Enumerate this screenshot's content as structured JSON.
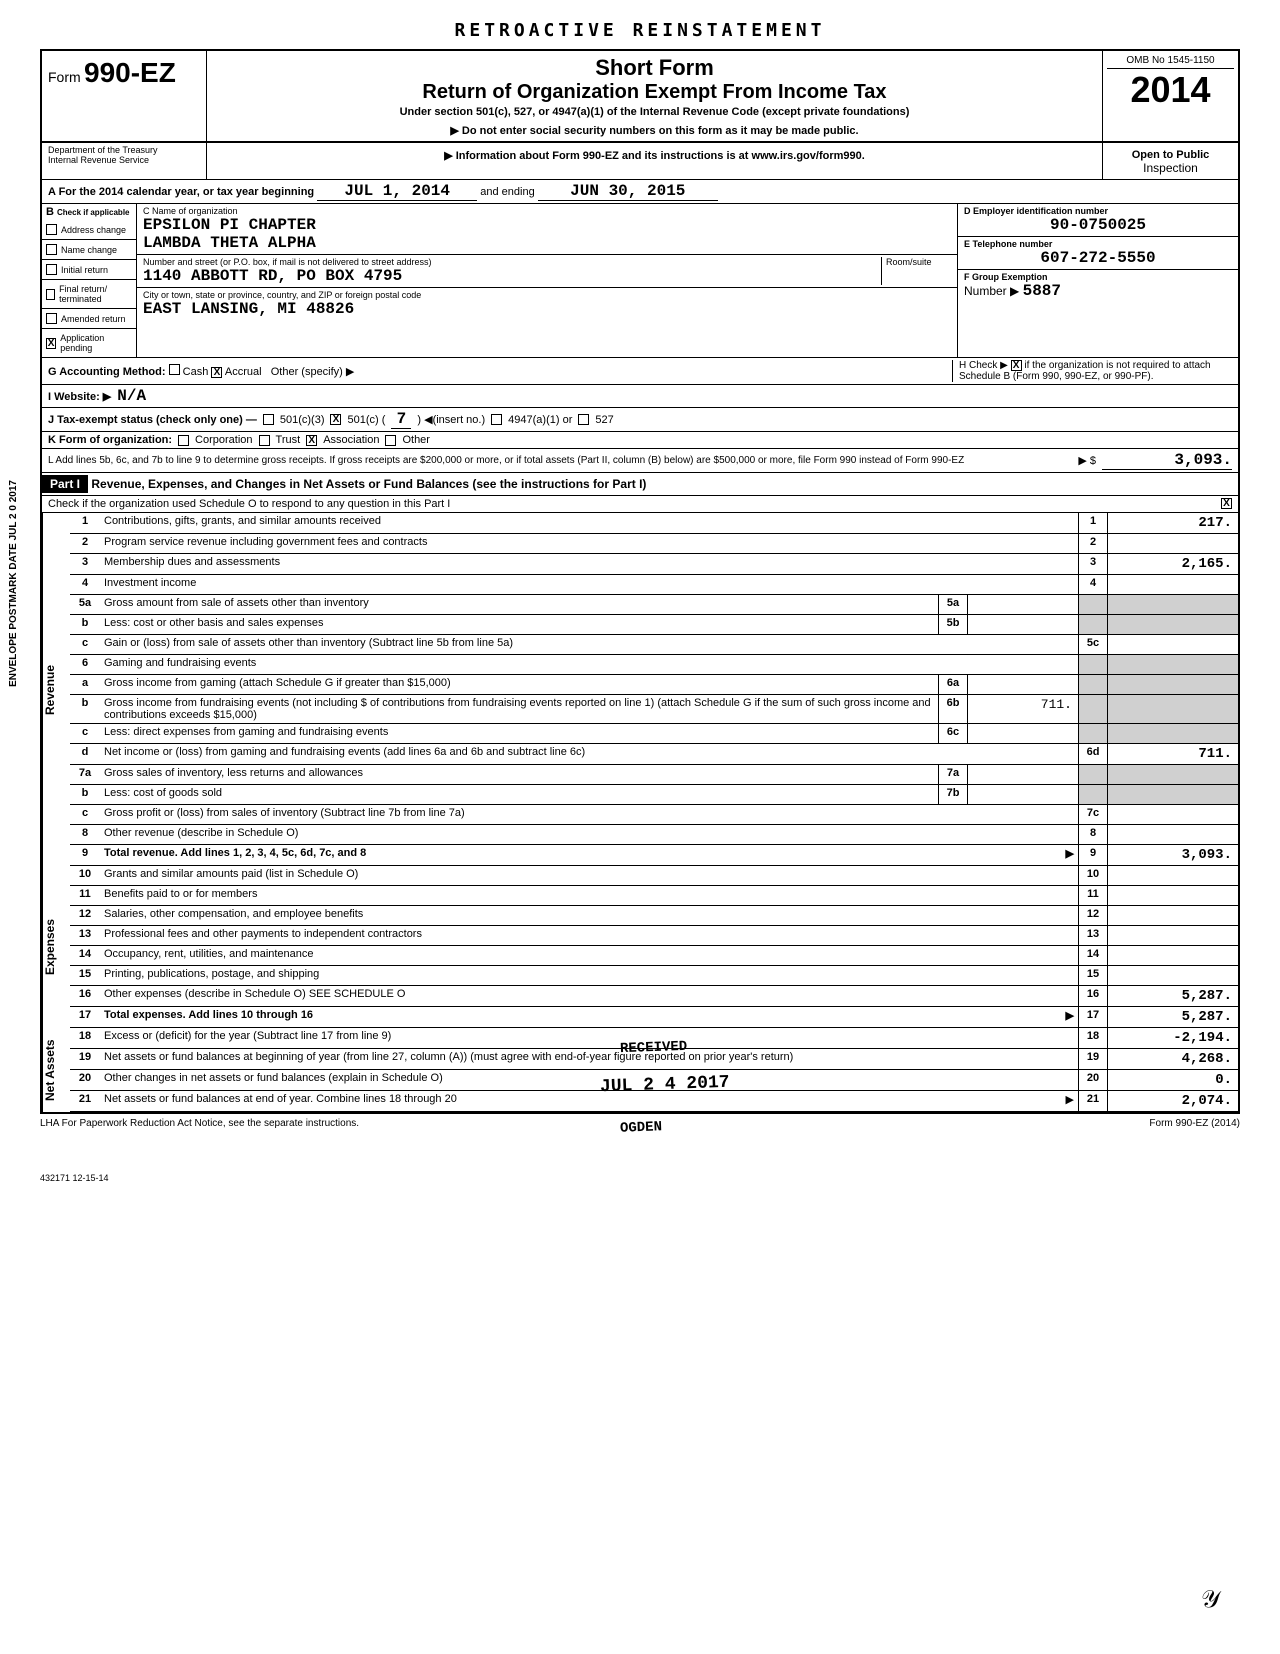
{
  "page_top": "RETROACTIVE REINSTATEMENT",
  "form": {
    "prefix": "Form",
    "number": "990-EZ",
    "short_form": "Short Form",
    "title": "Return of Organization Exempt From Income Tax",
    "subtitle": "Under section 501(c), 527, or 4947(a)(1) of the Internal Revenue Code (except private foundations)",
    "warning": "▶ Do not enter social security numbers on this form as it may be made public.",
    "info_line": "▶ Information about Form 990-EZ and its instructions is at www.irs.gov/form990.",
    "dept1": "Department of the Treasury",
    "dept2": "Internal Revenue Service",
    "omb": "OMB No 1545-1150",
    "year": "2014",
    "open_public": "Open to Public",
    "inspection": "Inspection"
  },
  "row_a": {
    "label": "A  For the 2014 calendar year, or tax year beginning",
    "begin": "JUL 1, 2014",
    "and_ending": "and ending",
    "end": "JUN 30, 2015"
  },
  "col_b": {
    "header": "B",
    "check_if": "Check if applicable",
    "items": [
      "Address change",
      "Name change",
      "Initial return",
      "Final return/ terminated",
      "Amended return",
      "Application pending"
    ],
    "checked_index": 5
  },
  "col_c": {
    "name_label": "C Name of organization",
    "name1": "EPSILON PI CHAPTER",
    "name2": "LAMBDA THETA ALPHA",
    "street_label": "Number and street (or P.O. box, if mail is not delivered to street address)",
    "room_label": "Room/suite",
    "street": "1140 ABBOTT RD, PO BOX 4795",
    "city_label": "City or town, state or province, country, and ZIP or foreign postal code",
    "city": "EAST LANSING, MI   48826"
  },
  "col_de": {
    "d_label": "D Employer identification number",
    "d_value": "90-0750025",
    "e_label": "E Telephone number",
    "e_value": "607-272-5550",
    "f_label": "F Group Exemption",
    "f_number_label": "Number ▶",
    "f_value": "5887"
  },
  "row_g": {
    "label": "G  Accounting Method:",
    "cash": "Cash",
    "accrual": "Accrual",
    "other": "Other (specify) ▶",
    "h_label": "H Check ▶",
    "h_text": "if the organization is not required to attach Schedule B (Form 990, 990-EZ, or 990-PF)."
  },
  "row_i": {
    "label": "I   Website: ▶",
    "value": "N/A"
  },
  "row_j": {
    "label": "J  Tax-exempt status (check only one) —",
    "opt1": "501(c)(3)",
    "opt2": "501(c) (",
    "opt2_val": "7",
    "opt2_suffix": ") ◀(insert no.)",
    "opt3": "4947(a)(1) or",
    "opt4": "527"
  },
  "row_k": {
    "label": "K  Form of organization:",
    "corp": "Corporation",
    "trust": "Trust",
    "assoc": "Association",
    "other": "Other"
  },
  "row_l": {
    "text": "L  Add lines 5b, 6c, and 7b to line 9 to determine gross receipts. If gross receipts are $200,000 or more, or if total assets (Part II, column (B) below) are $500,000 or more, file Form 990 instead of Form 990-EZ",
    "arrow": "▶  $",
    "value": "3,093."
  },
  "part1": {
    "header": "Part I",
    "title": "Revenue, Expenses, and Changes in Net Assets or Fund Balances (see the instructions for Part I)",
    "check_text": "Check if the organization used Schedule O to respond to any question in this Part I",
    "checked": "X"
  },
  "sections": {
    "revenue": "Revenue",
    "expenses": "Expenses",
    "net_assets": "Net Assets"
  },
  "lines": {
    "l1": {
      "num": "1",
      "desc": "Contributions, gifts, grants, and similar amounts received",
      "rnum": "1",
      "rval": "217."
    },
    "l2": {
      "num": "2",
      "desc": "Program service revenue including government fees and contracts",
      "rnum": "2",
      "rval": ""
    },
    "l3": {
      "num": "3",
      "desc": "Membership dues and assessments",
      "rnum": "3",
      "rval": "2,165."
    },
    "l4": {
      "num": "4",
      "desc": "Investment income",
      "rnum": "4",
      "rval": ""
    },
    "l5a": {
      "num": "5a",
      "desc": "Gross amount from sale of assets other than inventory",
      "mnum": "5a",
      "mval": ""
    },
    "l5b": {
      "num": "b",
      "desc": "Less: cost or other basis and sales expenses",
      "mnum": "5b",
      "mval": ""
    },
    "l5c": {
      "num": "c",
      "desc": "Gain or (loss) from sale of assets other than inventory (Subtract line 5b from line 5a)",
      "rnum": "5c",
      "rval": ""
    },
    "l6": {
      "num": "6",
      "desc": "Gaming and fundraising events"
    },
    "l6a": {
      "num": "a",
      "desc": "Gross income from gaming (attach Schedule G if greater than $15,000)",
      "mnum": "6a",
      "mval": ""
    },
    "l6b": {
      "num": "b",
      "desc": "Gross income from fundraising events (not including $                     of contributions from fundraising events reported on line 1) (attach Schedule G if the sum of such gross income and contributions exceeds $15,000)",
      "mnum": "6b",
      "mval": "711."
    },
    "l6c": {
      "num": "c",
      "desc": "Less: direct expenses from gaming and fundraising events",
      "mnum": "6c",
      "mval": ""
    },
    "l6d": {
      "num": "d",
      "desc": "Net income or (loss) from gaming and fundraising events (add lines 6a and 6b and subtract line 6c)",
      "rnum": "6d",
      "rval": "711."
    },
    "l7a": {
      "num": "7a",
      "desc": "Gross sales of inventory, less returns and allowances",
      "mnum": "7a",
      "mval": ""
    },
    "l7b": {
      "num": "b",
      "desc": "Less: cost of goods sold",
      "mnum": "7b",
      "mval": ""
    },
    "l7c": {
      "num": "c",
      "desc": "Gross profit or (loss) from sales of inventory (Subtract line 7b from line 7a)",
      "rnum": "7c",
      "rval": ""
    },
    "l8": {
      "num": "8",
      "desc": "Other revenue (describe in Schedule O)",
      "rnum": "8",
      "rval": ""
    },
    "l9": {
      "num": "9",
      "desc": "Total revenue. Add lines 1, 2, 3, 4, 5c, 6d, 7c, and 8",
      "rnum": "9",
      "rval": "3,093.",
      "bold": true,
      "arrow": true
    },
    "l10": {
      "num": "10",
      "desc": "Grants and similar amounts paid (list in Schedule O)",
      "rnum": "10",
      "rval": ""
    },
    "l11": {
      "num": "11",
      "desc": "Benefits paid to or for members",
      "rnum": "11",
      "rval": ""
    },
    "l12": {
      "num": "12",
      "desc": "Salaries, other compensation, and employee benefits",
      "rnum": "12",
      "rval": ""
    },
    "l13": {
      "num": "13",
      "desc": "Professional fees and other payments to independent contractors",
      "rnum": "13",
      "rval": ""
    },
    "l14": {
      "num": "14",
      "desc": "Occupancy, rent, utilities, and maintenance",
      "rnum": "14",
      "rval": ""
    },
    "l15": {
      "num": "15",
      "desc": "Printing, publications, postage, and shipping",
      "rnum": "15",
      "rval": ""
    },
    "l16": {
      "num": "16",
      "desc": "Other expenses (describe in Schedule O)                                              SEE SCHEDULE O",
      "rnum": "16",
      "rval": "5,287."
    },
    "l17": {
      "num": "17",
      "desc": "Total expenses. Add lines 10 through 16",
      "rnum": "17",
      "rval": "5,287.",
      "bold": true,
      "arrow": true
    },
    "l18": {
      "num": "18",
      "desc": "Excess or (deficit) for the year (Subtract line 17 from line 9)",
      "rnum": "18",
      "rval": "-2,194."
    },
    "l19": {
      "num": "19",
      "desc": "Net assets or fund balances at beginning of year (from line 27, column (A)) (must agree with end-of-year figure reported on prior year's return)",
      "rnum": "19",
      "rval": "4,268."
    },
    "l20": {
      "num": "20",
      "desc": "Other changes in net assets or fund balances (explain in Schedule O)",
      "rnum": "20",
      "rval": "0."
    },
    "l21": {
      "num": "21",
      "desc": "Net assets or fund balances at end of year. Combine lines 18 through 20",
      "rnum": "21",
      "rval": "2,074.",
      "arrow": true
    }
  },
  "footer": {
    "lha": "LHA  For Paperwork Reduction Act Notice, see the separate instructions.",
    "form_ref": "Form 990-EZ (2014)",
    "code": "432171\n12-15-14"
  },
  "stamps": {
    "received": "RECEIVED",
    "date": "JUL 2 4 2017",
    "ogden": "OGDEN",
    "envelope": "ENVELOPE\nPOSTMARK DATE  JUL 2 0 2017"
  }
}
